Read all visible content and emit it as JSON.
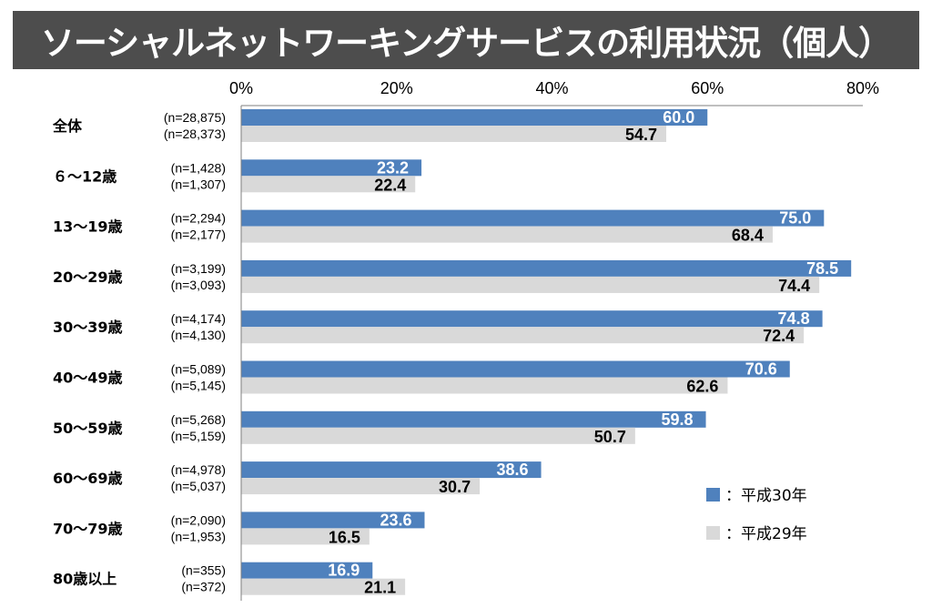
{
  "title": "ソーシャルネットワーキングサービスの利用状況（個人）",
  "chart_data": {
    "type": "bar",
    "orientation": "horizontal",
    "xlim": [
      0,
      80
    ],
    "xticks": [
      "0%",
      "20%",
      "40%",
      "60%",
      "80%"
    ],
    "categories": [
      "全体",
      "６～12歳",
      "13～19歳",
      "20～29歳",
      "30～39歳",
      "40～49歳",
      "50～59歳",
      "60～69歳",
      "70～79歳",
      "80歳以上"
    ],
    "series": [
      {
        "name": "平成30年",
        "legend_label": "：平成30年",
        "color": "#4f81bd",
        "values": [
          60.0,
          23.2,
          75.0,
          78.5,
          74.8,
          70.6,
          59.8,
          38.6,
          23.6,
          16.9
        ],
        "value_labels": [
          "60.0",
          "23.2",
          "75.0",
          "78.5",
          "74.8",
          "70.6",
          "59.8",
          "38.6",
          "23.6",
          "16.9"
        ],
        "n_labels": [
          "(n=28,875)",
          "(n=1,428)",
          "(n=2,294)",
          "(n=3,199)",
          "(n=4,174)",
          "(n=5,089)",
          "(n=5,268)",
          "(n=4,978)",
          "(n=2,090)",
          "(n=355)"
        ]
      },
      {
        "name": "平成29年",
        "legend_label": "：平成29年",
        "color": "#d9d9d9",
        "values": [
          54.7,
          22.4,
          68.4,
          74.4,
          72.4,
          62.6,
          50.7,
          30.7,
          16.5,
          21.1
        ],
        "value_labels": [
          "54.7",
          "22.4",
          "68.4",
          "74.4",
          "72.4",
          "62.6",
          "50.7",
          "30.7",
          "16.5",
          "21.1"
        ],
        "n_labels": [
          "(n=28,373)",
          "(n=1,307)",
          "(n=2,177)",
          "(n=3,093)",
          "(n=4,130)",
          "(n=5,145)",
          "(n=5,159)",
          "(n=5,037)",
          "(n=1,953)",
          "(n=372)"
        ]
      }
    ],
    "legend_position": "bottom-right",
    "grid": false
  }
}
